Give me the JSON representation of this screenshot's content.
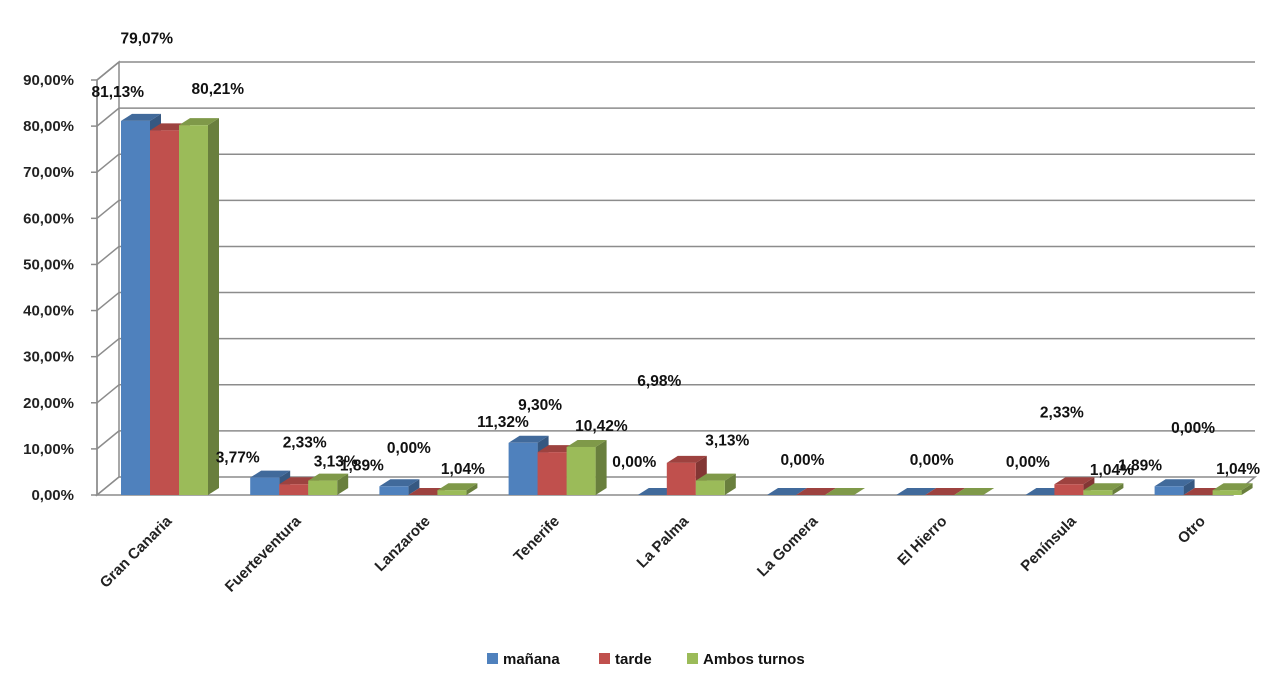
{
  "chart_data": {
    "type": "bar",
    "categories": [
      "Gran Canaria",
      "Fuerteventura",
      "Lanzarote",
      "Tenerife",
      "La Palma",
      "La Gomera",
      "El Hierro",
      "Península",
      "Otro"
    ],
    "series": [
      {
        "name": "mañana",
        "color": "#4F81BD",
        "values": [
          81.13,
          3.77,
          1.89,
          11.32,
          0.0,
          0.0,
          0.0,
          0.0,
          1.89
        ],
        "labels": [
          "81,13%",
          "3,77%",
          "1,89%",
          "11,32%",
          "0,00%",
          "",
          "",
          "0,00%",
          "1,89%"
        ]
      },
      {
        "name": "tarde",
        "color": "#C0504D",
        "values": [
          79.07,
          2.33,
          0.0,
          9.3,
          6.98,
          0.0,
          0.0,
          2.33,
          0.0
        ],
        "labels": [
          "79,07%",
          "2,33%",
          "0,00%",
          "9,30%",
          "6,98%",
          "0,00%",
          "0,00%",
          "2,33%",
          "0,00%"
        ]
      },
      {
        "name": "Ambos turnos",
        "color": "#9BBB59",
        "values": [
          80.21,
          3.13,
          1.04,
          10.42,
          3.13,
          0.0,
          0.0,
          1.04,
          1.04
        ],
        "labels": [
          "80,21%",
          "3,13%",
          "1,04%",
          "10,42%",
          "3,13%",
          "",
          "",
          "1,04%",
          "1,04%"
        ]
      }
    ],
    "ylim": [
      0,
      90
    ],
    "yticks": [
      "0,00%",
      "10,00%",
      "20,00%",
      "30,00%",
      "40,00%",
      "50,00%",
      "60,00%",
      "70,00%",
      "80,00%",
      "90,00%"
    ],
    "title": "",
    "xlabel": "",
    "ylabel": "",
    "grid": true,
    "legend": "bottom"
  }
}
